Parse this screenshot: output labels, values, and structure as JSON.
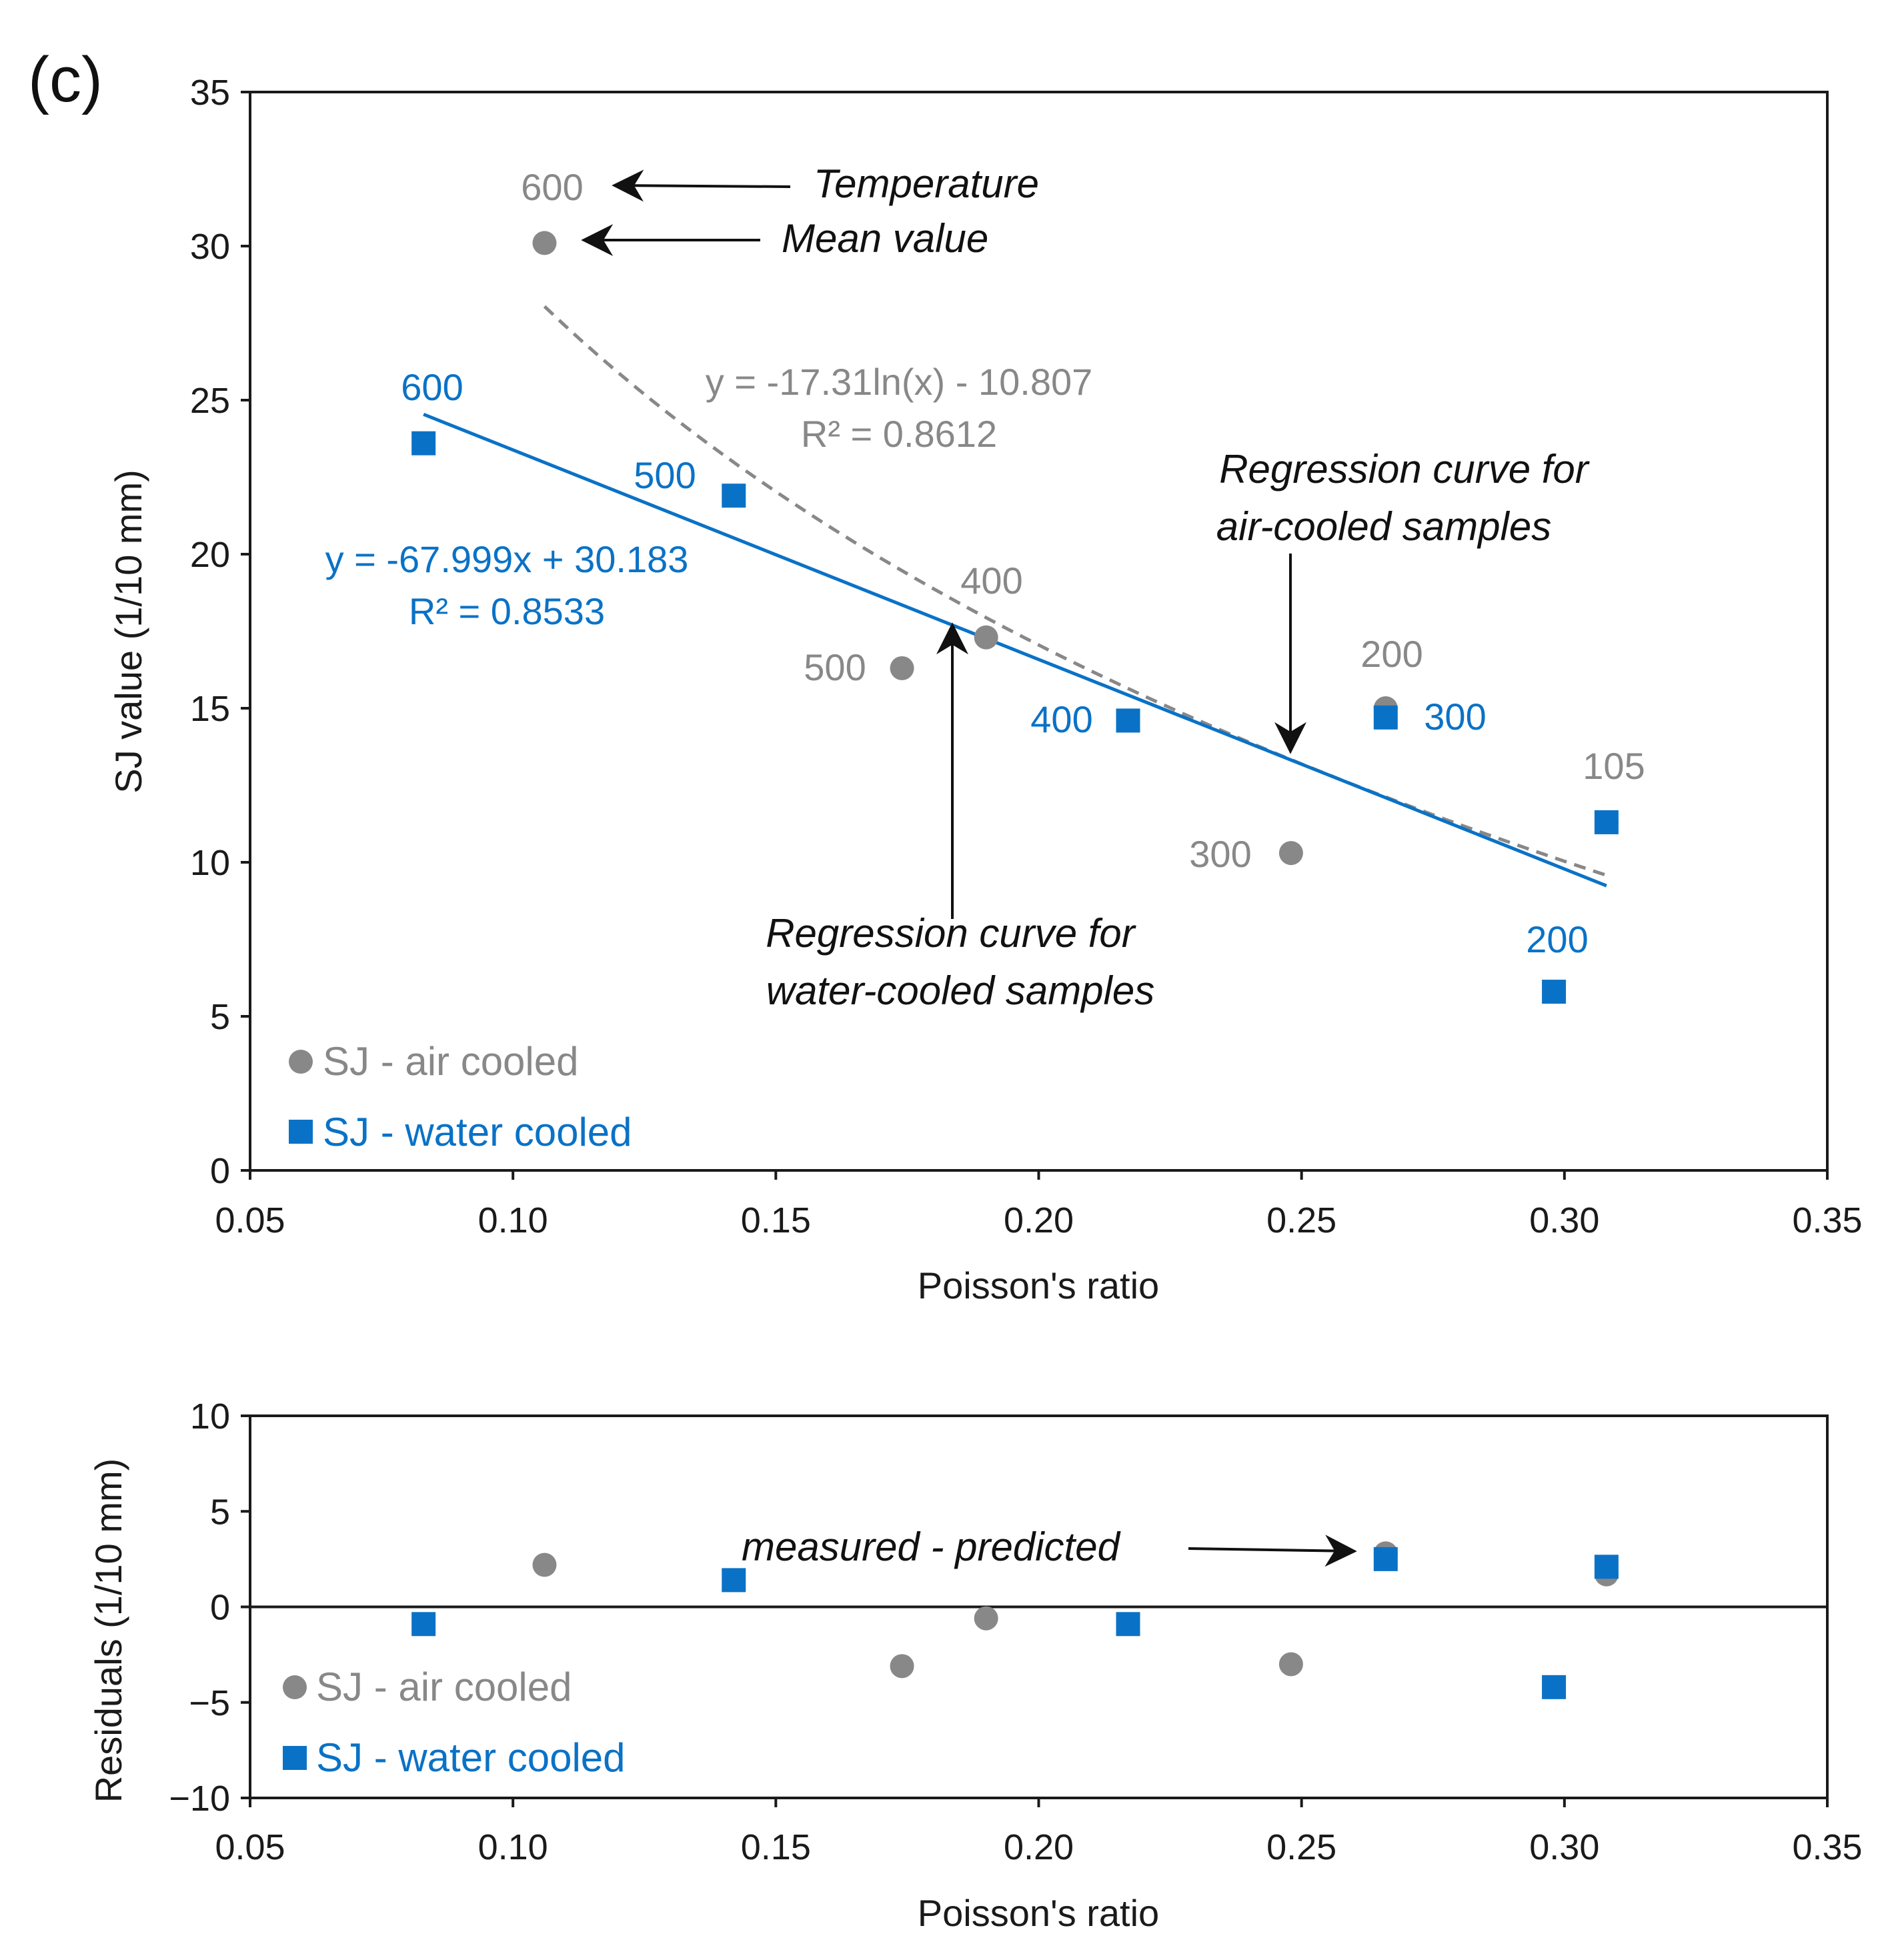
{
  "colors": {
    "air": "#888888",
    "water": "#0A72C6",
    "axis": "#1a1a1a",
    "annotation": "#111111"
  },
  "panel_label": "(c)",
  "chart_data": [
    {
      "id": "main",
      "type": "scatter",
      "xlabel": "Poisson's ratio",
      "ylabel": "SJ value (1/10 mm)",
      "xlim": [
        0.05,
        0.35
      ],
      "ylim": [
        0,
        35
      ],
      "xticks": [
        "0.05",
        "0.10",
        "0.15",
        "0.20",
        "0.25",
        "0.30",
        "0.35"
      ],
      "yticks": [
        "0",
        "5",
        "10",
        "15",
        "20",
        "25",
        "30",
        "35"
      ],
      "series": [
        {
          "name": "SJ - air cooled",
          "marker": "circle",
          "x": [
            0.106,
            0.174,
            0.19,
            0.248,
            0.266,
            0.308
          ],
          "y": [
            30.1,
            16.3,
            17.3,
            10.3,
            15.0,
            11.3
          ],
          "temperature_labels": [
            "600",
            "500",
            "400",
            "300",
            "200",
            "105"
          ]
        },
        {
          "name": "SJ - water cooled",
          "marker": "square",
          "x": [
            0.083,
            0.142,
            0.217,
            0.266,
            0.298,
            0.308
          ],
          "y": [
            23.6,
            21.9,
            14.6,
            14.7,
            5.8,
            11.3
          ],
          "temperature_labels": [
            "600",
            "500",
            "400",
            "300",
            "200",
            ""
          ]
        }
      ],
      "regressions": [
        {
          "series": "SJ - air cooled",
          "kind": "log",
          "a": -17.31,
          "b": -10.807,
          "x_range": [
            0.106,
            0.308
          ],
          "equation": "y = -17.31ln(x) - 10.807",
          "r2": "R² = 0.8612"
        },
        {
          "series": "SJ - water cooled",
          "kind": "linear",
          "a": -67.999,
          "b": 30.183,
          "x_range": [
            0.083,
            0.308
          ],
          "equation": "y = -67.999x + 30.183",
          "r2": "R² = 0.8533"
        }
      ],
      "annotations": {
        "temperature": "Temperature",
        "mean_value": "Mean value",
        "air_curve_line1": "Regression curve for",
        "air_curve_line2": "air-cooled samples",
        "water_curve_line1": "Regression curve for",
        "water_curve_line2": "water-cooled samples"
      },
      "legend": [
        "SJ - air cooled",
        "SJ - water cooled"
      ]
    },
    {
      "id": "residuals",
      "type": "scatter",
      "xlabel": "Poisson's ratio",
      "ylabel": "Residuals (1/10 mm)",
      "xlim": [
        0.05,
        0.35
      ],
      "ylim": [
        -10,
        10
      ],
      "xticks": [
        "0.05",
        "0.10",
        "0.15",
        "0.20",
        "0.25",
        "0.30",
        "0.35"
      ],
      "yticks": [
        "−10",
        "−5",
        "0",
        "5",
        "10"
      ],
      "ytick_values": [
        -10,
        -5,
        0,
        5,
        10
      ],
      "series": [
        {
          "name": "SJ - air cooled",
          "marker": "circle",
          "x": [
            0.106,
            0.174,
            0.19,
            0.248,
            0.266,
            0.308
          ],
          "y": [
            2.2,
            -3.1,
            -0.6,
            -3.0,
            2.8,
            1.7
          ]
        },
        {
          "name": "SJ - water cooled",
          "marker": "square",
          "x": [
            0.083,
            0.142,
            0.217,
            0.266,
            0.298,
            0.308
          ],
          "y": [
            -0.9,
            1.4,
            -0.9,
            2.5,
            -4.2,
            2.1
          ]
        }
      ],
      "annotations": {
        "measured_predicted": "measured - predicted"
      },
      "legend": [
        "SJ - air cooled",
        "SJ - water cooled"
      ]
    }
  ]
}
